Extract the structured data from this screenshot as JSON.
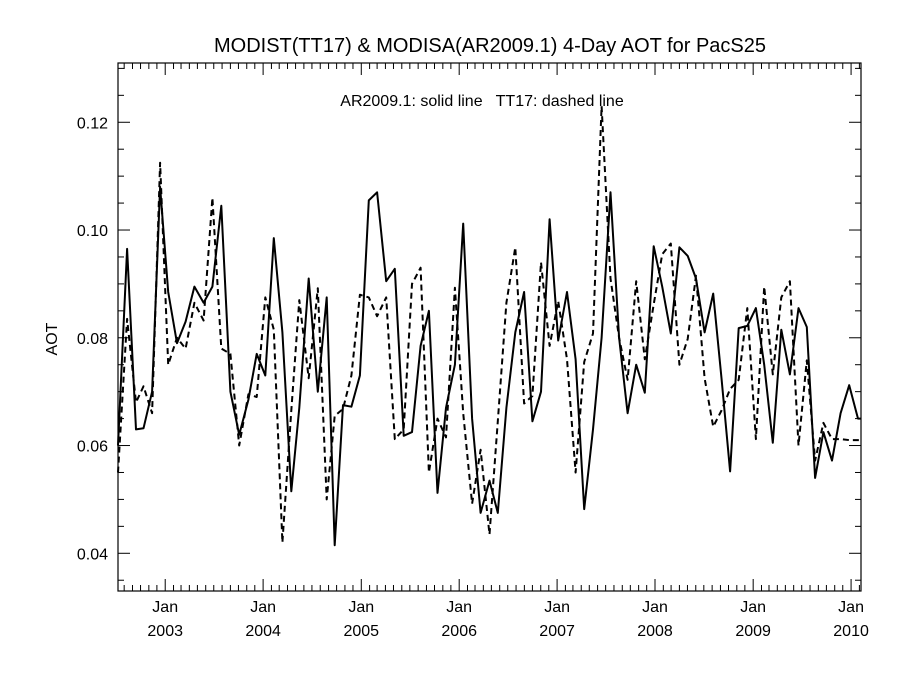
{
  "chart_data": {
    "type": "line",
    "title": "MODIST(TT17) & MODISA(AR2009.1) 4-Day AOT for PacS25",
    "annotation": "AR2009.1: solid line   TT17: dashed line",
    "ylabel": "AOT",
    "xlabel": "",
    "ylim": [
      0.033,
      0.131
    ],
    "xlim": [
      "2002-07-09",
      "2010-02-07"
    ],
    "grid": false,
    "y_ticks": [
      "0.04",
      "0.06",
      "0.08",
      "0.10",
      "0.12"
    ],
    "y_tick_values": [
      0.04,
      0.06,
      0.08,
      0.1,
      0.12
    ],
    "x_ticks": [
      {
        "date": "2003-01-01",
        "month": "Jan",
        "year": "2003"
      },
      {
        "date": "2004-01-01",
        "month": "Jan",
        "year": "2004"
      },
      {
        "date": "2005-01-01",
        "month": "Jan",
        "year": "2005"
      },
      {
        "date": "2006-01-01",
        "month": "Jan",
        "year": "2006"
      },
      {
        "date": "2007-01-01",
        "month": "Jan",
        "year": "2007"
      },
      {
        "date": "2008-01-01",
        "month": "Jan",
        "year": "2008"
      },
      {
        "date": "2009-01-01",
        "month": "Jan",
        "year": "2009"
      },
      {
        "date": "2010-01-01",
        "month": "Jan",
        "year": "2010"
      }
    ],
    "series": [
      {
        "style": "solid",
        "x": [
          "2002-07-09",
          "2002-08-12",
          "2002-09-14",
          "2002-10-12",
          "2002-11-13",
          "2002-12-13",
          "2003-01-12",
          "2003-02-14",
          "2003-03-18",
          "2003-04-20",
          "2003-05-24",
          "2003-06-26",
          "2003-07-29",
          "2003-09-01",
          "2003-10-04",
          "2003-11-07",
          "2003-12-08",
          "2004-01-09",
          "2004-02-10",
          "2004-03-13",
          "2004-04-15",
          "2004-05-15",
          "2004-06-19",
          "2004-07-23",
          "2004-08-25",
          "2004-09-24",
          "2004-10-25",
          "2004-11-25",
          "2004-12-27",
          "2005-01-29",
          "2005-03-01",
          "2005-04-04",
          "2005-05-06",
          "2005-06-08",
          "2005-07-09",
          "2005-08-10",
          "2005-09-10",
          "2005-10-12",
          "2005-11-13",
          "2005-12-16",
          "2006-01-16",
          "2006-02-18",
          "2006-03-22",
          "2006-04-24",
          "2006-05-25",
          "2006-06-26",
          "2006-07-29",
          "2006-08-31",
          "2006-10-01",
          "2006-11-02",
          "2006-12-04",
          "2007-01-05",
          "2007-02-07",
          "2007-03-11",
          "2007-04-12",
          "2007-05-15",
          "2007-06-16",
          "2007-07-19",
          "2007-08-20",
          "2007-09-21",
          "2007-10-23",
          "2007-11-24",
          "2007-12-27",
          "2008-01-28",
          "2008-02-29",
          "2008-04-01",
          "2008-05-02",
          "2008-06-02",
          "2008-07-04",
          "2008-08-05",
          "2008-09-05",
          "2008-10-07",
          "2008-11-08",
          "2008-12-10",
          "2009-01-11",
          "2009-02-11",
          "2009-03-15",
          "2009-04-16",
          "2009-05-18",
          "2009-06-19",
          "2009-07-20",
          "2009-08-20",
          "2009-09-20",
          "2009-10-22",
          "2009-11-23",
          "2009-12-25",
          "2010-01-27",
          "2010-02-07"
        ],
        "y": [
          0.06,
          0.0965,
          0.063,
          0.0632,
          0.07,
          0.108,
          0.0885,
          0.079,
          0.083,
          0.0895,
          0.0865,
          0.0895,
          0.1045,
          0.07,
          0.062,
          0.0685,
          0.077,
          0.073,
          0.0985,
          0.081,
          0.0515,
          0.067,
          0.091,
          0.07,
          0.0875,
          0.0415,
          0.0675,
          0.0672,
          0.073,
          0.1055,
          0.107,
          0.0905,
          0.0928,
          0.0618,
          0.0625,
          0.0785,
          0.085,
          0.0512,
          0.067,
          0.075,
          0.1012,
          0.065,
          0.0475,
          0.0535,
          0.0475,
          0.067,
          0.081,
          0.0885,
          0.0645,
          0.07,
          0.102,
          0.0795,
          0.0885,
          0.076,
          0.0482,
          0.063,
          0.08,
          0.107,
          0.08,
          0.066,
          0.075,
          0.0698,
          0.097,
          0.0895,
          0.0808,
          0.0968,
          0.0952,
          0.091,
          0.081,
          0.0882,
          0.0725,
          0.0552,
          0.0818,
          0.0822,
          0.0855,
          0.075,
          0.0605,
          0.0815,
          0.0732,
          0.0855,
          0.082,
          0.054,
          0.0625,
          0.0572,
          0.066,
          0.0712,
          0.065,
          0.065
        ]
      },
      {
        "style": "dashed",
        "x": [
          "2002-07-09",
          "2002-08-12",
          "2002-09-14",
          "2002-10-12",
          "2002-11-13",
          "2002-12-13",
          "2003-01-12",
          "2003-02-14",
          "2003-03-18",
          "2003-04-20",
          "2003-05-24",
          "2003-06-26",
          "2003-07-29",
          "2003-09-01",
          "2003-10-04",
          "2003-11-07",
          "2003-12-08",
          "2004-01-09",
          "2004-02-10",
          "2004-03-13",
          "2004-04-15",
          "2004-05-15",
          "2004-06-19",
          "2004-07-23",
          "2004-08-25",
          "2004-09-24",
          "2004-10-25",
          "2004-11-25",
          "2004-12-27",
          "2005-01-29",
          "2005-03-01",
          "2005-04-04",
          "2005-05-06",
          "2005-06-08",
          "2005-07-09",
          "2005-08-10",
          "2005-09-10",
          "2005-10-12",
          "2005-11-13",
          "2005-12-16",
          "2006-01-16",
          "2006-02-18",
          "2006-03-22",
          "2006-04-24",
          "2006-05-25",
          "2006-06-26",
          "2006-07-29",
          "2006-08-31",
          "2006-10-01",
          "2006-11-02",
          "2006-12-04",
          "2007-01-05",
          "2007-02-07",
          "2007-03-11",
          "2007-04-12",
          "2007-05-15",
          "2007-06-16",
          "2007-07-19",
          "2007-08-20",
          "2007-09-21",
          "2007-10-23",
          "2007-11-24",
          "2007-12-27",
          "2008-01-28",
          "2008-02-29",
          "2008-04-01",
          "2008-05-02",
          "2008-06-02",
          "2008-07-04",
          "2008-08-05",
          "2008-09-05",
          "2008-10-07",
          "2008-11-08",
          "2008-12-10",
          "2009-01-11",
          "2009-02-11",
          "2009-03-15",
          "2009-04-16",
          "2009-05-18",
          "2009-06-19",
          "2009-07-20",
          "2009-08-20",
          "2009-09-20",
          "2009-10-22",
          "2009-11-23",
          "2009-12-25",
          "2010-01-27",
          "2010-02-07"
        ],
        "y": [
          0.055,
          0.0835,
          0.068,
          0.071,
          0.066,
          0.1125,
          0.075,
          0.08,
          0.078,
          0.0865,
          0.0832,
          0.106,
          0.078,
          0.077,
          0.06,
          0.0695,
          0.069,
          0.0875,
          0.0815,
          0.042,
          0.0665,
          0.087,
          0.0725,
          0.0892,
          0.05,
          0.0655,
          0.0668,
          0.073,
          0.088,
          0.0875,
          0.084,
          0.0875,
          0.0612,
          0.063,
          0.09,
          0.093,
          0.055,
          0.065,
          0.0615,
          0.0893,
          0.066,
          0.0492,
          0.0592,
          0.0435,
          0.0645,
          0.0865,
          0.0968,
          0.0678,
          0.0692,
          0.094,
          0.0785,
          0.0868,
          0.076,
          0.055,
          0.0755,
          0.0808,
          0.123,
          0.091,
          0.08,
          0.0722,
          0.0905,
          0.076,
          0.0862,
          0.0955,
          0.0975,
          0.075,
          0.0798,
          0.0915,
          0.0725,
          0.0635,
          0.0665,
          0.0705,
          0.0722,
          0.0855,
          0.0612,
          0.0895,
          0.0732,
          0.0875,
          0.0905,
          0.06,
          0.0758,
          0.0572,
          0.0642,
          0.0612,
          0.0612,
          0.061,
          0.061,
          0.061
        ]
      }
    ]
  }
}
